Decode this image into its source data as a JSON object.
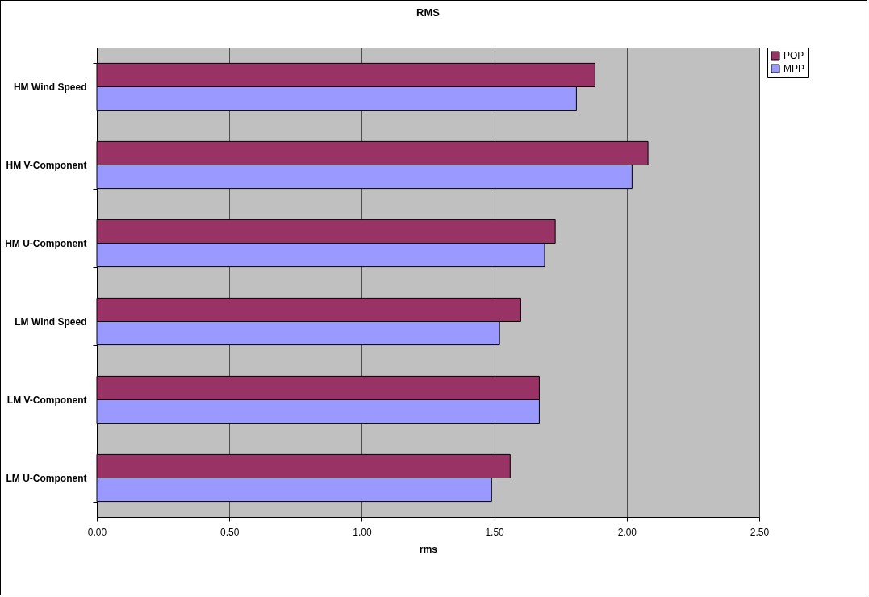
{
  "chart_data": {
    "type": "bar",
    "orientation": "horizontal",
    "title": "RMS",
    "xlabel": "rms",
    "categories": [
      "HM Wind Speed",
      "HM V-Component",
      "HM U-Component",
      "LM Wind Speed",
      "LM V-Component",
      "LM U-Component"
    ],
    "series": [
      {
        "name": "POP",
        "color": "#993366",
        "values": [
          1.88,
          2.08,
          1.73,
          1.6,
          1.67,
          1.56
        ]
      },
      {
        "name": "MPP",
        "color": "#9999ff",
        "values": [
          1.81,
          2.02,
          1.69,
          1.52,
          1.67,
          1.49
        ]
      }
    ],
    "xlim": [
      0,
      2.5
    ],
    "xticks": [
      {
        "value": 0,
        "label": "0.00"
      },
      {
        "value": 0.5,
        "label": "0.50"
      },
      {
        "value": 1,
        "label": "1.00"
      },
      {
        "value": 1.5,
        "label": "1.50"
      },
      {
        "value": 2,
        "label": "2.00"
      },
      {
        "value": 2.5,
        "label": "2.50"
      }
    ],
    "grid": "x",
    "legend": "right"
  }
}
